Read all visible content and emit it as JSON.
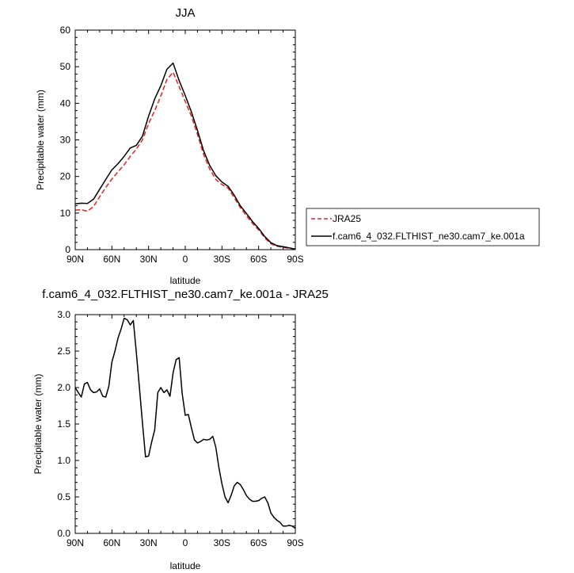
{
  "chart_data": [
    {
      "type": "line",
      "title": "JJA",
      "xlabel": "latitude",
      "ylabel": "Precipitable water (mm)",
      "xlim": [
        90,
        -90
      ],
      "ylim": [
        0,
        60
      ],
      "xticks": [
        90,
        60,
        30,
        0,
        -30,
        -60,
        -90
      ],
      "xtick_labels": [
        "90N",
        "60N",
        "30N",
        "0",
        "30S",
        "60S",
        "90S"
      ],
      "yticks": [
        0,
        10,
        20,
        30,
        40,
        50,
        60
      ],
      "ytick_labels": [
        "0",
        "10",
        "20",
        "30",
        "40",
        "50",
        "60"
      ],
      "grid": false,
      "legend": "right",
      "x": [
        90,
        85,
        80,
        75,
        70,
        65,
        60,
        55,
        50,
        45,
        40,
        35,
        30,
        25,
        20,
        15,
        10,
        5,
        0,
        -5,
        -10,
        -15,
        -20,
        -25,
        -30,
        -35,
        -40,
        -45,
        -50,
        -55,
        -60,
        -65,
        -70,
        -75,
        -80,
        -85,
        -90
      ],
      "series": [
        {
          "name": "JRA25",
          "color": "#e8201e",
          "dash": "dashed",
          "values": [
            10.8,
            10.9,
            10.5,
            11.8,
            14.5,
            17,
            19.3,
            21.3,
            23.2,
            25.5,
            27.5,
            30,
            34.5,
            38,
            42,
            46.5,
            48.5,
            44.5,
            40.5,
            36.5,
            31.5,
            26,
            22,
            19.2,
            17.8,
            16.8,
            14.2,
            11.5,
            9.3,
            7.2,
            5.4,
            3.2,
            1.6,
            0.9,
            0.6,
            0.4,
            0.2
          ]
        },
        {
          "name": "f.cam6_4_032.FLTHIST_ne30.cam7_ke.001a",
          "color": "#000000",
          "dash": "solid",
          "values": [
            12.5,
            12.7,
            12.6,
            13.8,
            16.5,
            19.2,
            21.8,
            23.5,
            25.5,
            27.8,
            28.5,
            31,
            36.5,
            41.2,
            44.8,
            49.3,
            51,
            46.2,
            42.1,
            37.7,
            32.6,
            27,
            23,
            20.2,
            18.5,
            17.3,
            14.9,
            12,
            9.9,
            7.7,
            5.8,
            3.6,
            1.9,
            1.1,
            0.8,
            0.5,
            0.1
          ]
        }
      ]
    },
    {
      "type": "line",
      "title": "f.cam6_4_032.FLTHIST_ne30.cam7_ke.001a - JRA25",
      "xlabel": "latitude",
      "ylabel": "Precipitable water (mm)",
      "xlim": [
        90,
        -90
      ],
      "ylim": [
        0,
        3
      ],
      "xticks": [
        90,
        60,
        30,
        0,
        -30,
        -60,
        -90
      ],
      "xtick_labels": [
        "90N",
        "60N",
        "30N",
        "0",
        "30S",
        "60S",
        "90S"
      ],
      "yticks": [
        0,
        0.5,
        1,
        1.5,
        2,
        2.5,
        3
      ],
      "ytick_labels": [
        "0.0",
        "0.5",
        "1.0",
        "1.5",
        "2.0",
        "2.5",
        "3.0"
      ],
      "grid": false,
      "series": [
        {
          "color": "#000000",
          "dash": "solid",
          "x": [
            90,
            87.5,
            85,
            82.5,
            80,
            77.5,
            75,
            72.5,
            70,
            67.5,
            65,
            62.5,
            60,
            57.5,
            55,
            52.5,
            50,
            47.5,
            45,
            42.5,
            40,
            37.5,
            35,
            32.5,
            30,
            27.5,
            25,
            22.5,
            20,
            17.5,
            15,
            12.5,
            10,
            7.5,
            5,
            2.5,
            0,
            -2.5,
            -5,
            -7.5,
            -10,
            -12.5,
            -15,
            -17.5,
            -20,
            -22.5,
            -25,
            -27.5,
            -30,
            -32.5,
            -35,
            -37.5,
            -40,
            -42.5,
            -45,
            -47.5,
            -50,
            -52.5,
            -55,
            -57.5,
            -60,
            -62.5,
            -65,
            -67.5,
            -70,
            -72.5,
            -75,
            -77.5,
            -80,
            -82.5,
            -85,
            -87.5,
            -90
          ],
          "values": [
            2.0,
            1.93,
            1.87,
            2.05,
            2.07,
            1.97,
            1.93,
            1.94,
            1.98,
            1.88,
            1.87,
            2.02,
            2.35,
            2.5,
            2.68,
            2.8,
            2.95,
            2.93,
            2.86,
            2.92,
            2.48,
            2.0,
            1.52,
            1.05,
            1.06,
            1.25,
            1.42,
            1.93,
            2.0,
            1.93,
            1.97,
            1.88,
            2.2,
            2.38,
            2.41,
            1.92,
            1.62,
            1.63,
            1.45,
            1.28,
            1.24,
            1.26,
            1.29,
            1.28,
            1.29,
            1.33,
            1.18,
            0.9,
            0.68,
            0.5,
            0.42,
            0.52,
            0.65,
            0.7,
            0.67,
            0.6,
            0.52,
            0.47,
            0.44,
            0.44,
            0.45,
            0.48,
            0.5,
            0.42,
            0.28,
            0.22,
            0.18,
            0.15,
            0.1,
            0.1,
            0.11,
            0.1,
            0.07
          ]
        }
      ]
    }
  ]
}
